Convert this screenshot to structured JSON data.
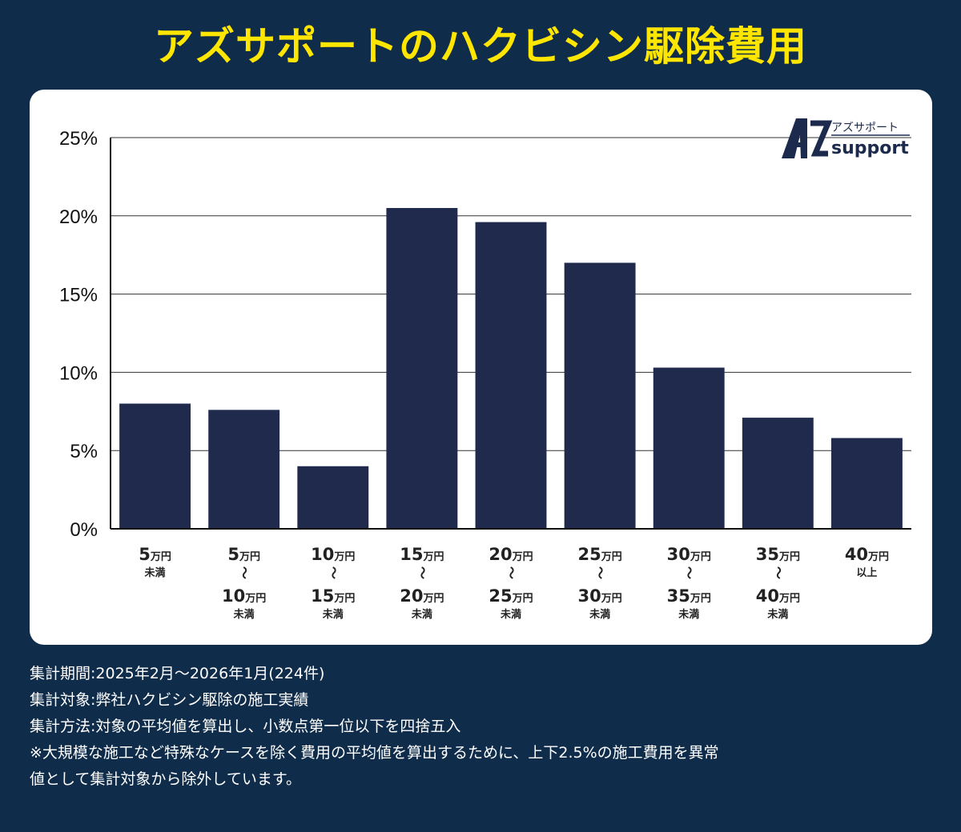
{
  "title": "アズサポートのハクビシン駆除費用",
  "logo": {
    "mark": "AZ",
    "jp": "アズサポート",
    "en": "support"
  },
  "colors": {
    "background": "#0f2c4a",
    "title": "#ffe600",
    "bar": "#1f2a4d",
    "card": "#ffffff"
  },
  "chart_data": {
    "type": "bar",
    "title": "アズサポートのハクビシン駆除費用",
    "ylim": [
      0,
      25
    ],
    "yticks": [
      0,
      5,
      10,
      15,
      20,
      25
    ],
    "ytick_labels": [
      "0%",
      "5%",
      "10%",
      "15%",
      "20%",
      "25%"
    ],
    "grid": true,
    "categories": [
      {
        "lines": [
          {
            "num": "5",
            "unit": "万円"
          },
          {
            "small": "未満"
          }
        ]
      },
      {
        "lines": [
          {
            "num": "5",
            "unit": "万円"
          },
          {
            "tilde": "〜"
          },
          {
            "num": "10",
            "unit": "万円"
          },
          {
            "small": "未満"
          }
        ]
      },
      {
        "lines": [
          {
            "num": "10",
            "unit": "万円"
          },
          {
            "tilde": "〜"
          },
          {
            "num": "15",
            "unit": "万円"
          },
          {
            "small": "未満"
          }
        ]
      },
      {
        "lines": [
          {
            "num": "15",
            "unit": "万円"
          },
          {
            "tilde": "〜"
          },
          {
            "num": "20",
            "unit": "万円"
          },
          {
            "small": "未満"
          }
        ]
      },
      {
        "lines": [
          {
            "num": "20",
            "unit": "万円"
          },
          {
            "tilde": "〜"
          },
          {
            "num": "25",
            "unit": "万円"
          },
          {
            "small": "未満"
          }
        ]
      },
      {
        "lines": [
          {
            "num": "25",
            "unit": "万円"
          },
          {
            "tilde": "〜"
          },
          {
            "num": "30",
            "unit": "万円"
          },
          {
            "small": "未満"
          }
        ]
      },
      {
        "lines": [
          {
            "num": "30",
            "unit": "万円"
          },
          {
            "tilde": "〜"
          },
          {
            "num": "35",
            "unit": "万円"
          },
          {
            "small": "未満"
          }
        ]
      },
      {
        "lines": [
          {
            "num": "35",
            "unit": "万円"
          },
          {
            "tilde": "〜"
          },
          {
            "num": "40",
            "unit": "万円"
          },
          {
            "small": "未満"
          }
        ]
      },
      {
        "lines": [
          {
            "num": "40",
            "unit": "万円"
          },
          {
            "small": "以上"
          }
        ]
      }
    ],
    "values": [
      8.0,
      7.6,
      4.0,
      20.5,
      19.6,
      17.0,
      10.3,
      7.1,
      5.8
    ]
  },
  "notes": [
    "集計期間:2025年2月〜2026年1月(224件)",
    "集計対象:弊社ハクビシン駆除の施工実績",
    "集計方法:対象の平均値を算出し、小数点第一位以下を四捨五入",
    "※大規模な施工など特殊なケースを除く費用の平均値を算出するために、上下2.5%の施工費用を異常",
    "値として集計対象から除外しています。"
  ]
}
